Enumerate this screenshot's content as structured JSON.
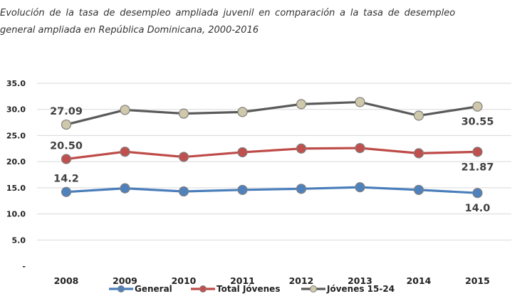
{
  "caption": {
    "line1": "Evolución de la tasa de desempleo ampliada juvenil en comparación a la tasa de desempleo",
    "line2": "general ampliada en República Dominicana, 2000-2016"
  },
  "chart_data": {
    "type": "line",
    "title": "",
    "xlabel": "",
    "ylabel": "",
    "categories": [
      "2008",
      "2009",
      "2010",
      "2011",
      "2012",
      "2013",
      "2014",
      "2015"
    ],
    "ylim": [
      0,
      35
    ],
    "yticks": [
      {
        "value": 35,
        "label": "35.0"
      },
      {
        "value": 30,
        "label": "30.0"
      },
      {
        "value": 25,
        "label": "25.0"
      },
      {
        "value": 20,
        "label": "20.0"
      },
      {
        "value": 15,
        "label": "15.0"
      },
      {
        "value": 10,
        "label": "10.0"
      },
      {
        "value": 5,
        "label": "5.0"
      },
      {
        "value": 0,
        "label": "-"
      }
    ],
    "grid": "horizontal",
    "legend_position": "bottom",
    "series": [
      {
        "name": "General",
        "color": "#4f81bd",
        "line_color": "#4a7ebb",
        "values": [
          14.2,
          14.9,
          14.3,
          14.6,
          14.8,
          15.1,
          14.6,
          14.0
        ],
        "labels": [
          {
            "index": 0,
            "text": "14.2",
            "placement": "above"
          },
          {
            "index": 7,
            "text": "14.0",
            "placement": "below"
          }
        ]
      },
      {
        "name": "Total Jóvenes",
        "color": "#c0504d",
        "line_color": "#be4b48",
        "values": [
          20.5,
          21.9,
          20.9,
          21.8,
          22.5,
          22.6,
          21.6,
          21.87
        ],
        "labels": [
          {
            "index": 0,
            "text": "20.50",
            "placement": "above"
          },
          {
            "index": 7,
            "text": "21.87",
            "placement": "below"
          }
        ]
      },
      {
        "name": "Jóvenes 15-24",
        "color": "#cfc8aa",
        "line_color": "#5a5a5a",
        "values": [
          27.09,
          29.9,
          29.2,
          29.5,
          31.0,
          31.4,
          28.8,
          30.55
        ],
        "labels": [
          {
            "index": 0,
            "text": "27.09",
            "placement": "above"
          },
          {
            "index": 7,
            "text": "30.55",
            "placement": "below"
          }
        ]
      }
    ]
  }
}
